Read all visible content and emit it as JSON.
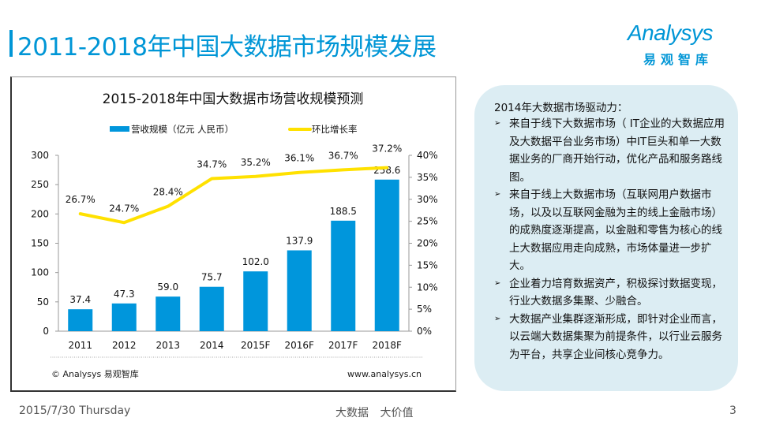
{
  "header": {
    "title": "2011-2018年中国大数据市场规模发展",
    "logo_word": "Analysys",
    "logo_cn": "易观智库"
  },
  "chart_data": {
    "type": "bar+line",
    "title": "2015-2018年中国大数据市场营收规模预测",
    "categories": [
      "2011",
      "2012",
      "2013",
      "2014",
      "2015F",
      "2016F",
      "2017F",
      "2018F"
    ],
    "series": [
      {
        "name": "营收规模（亿元 人民币）",
        "type": "bar",
        "axis": "left",
        "color": "#0096dc",
        "values": [
          37.4,
          47.3,
          59.0,
          75.7,
          102.0,
          137.9,
          188.5,
          258.6
        ],
        "labels": [
          "37.4",
          "47.3",
          "59.0",
          "75.7",
          "102.0",
          "137.9",
          "188.5",
          "258.6"
        ]
      },
      {
        "name": "环比增长率",
        "type": "line",
        "axis": "right",
        "color": "#ffe100",
        "values": [
          26.7,
          24.7,
          28.4,
          34.7,
          35.2,
          36.1,
          36.7,
          37.2
        ],
        "labels": [
          "26.7%",
          "24.7%",
          "28.4%",
          "34.7%",
          "35.2%",
          "36.1%",
          "36.7%",
          "37.2%"
        ]
      }
    ],
    "left_axis": {
      "range": [
        0,
        300
      ],
      "ticks": [
        "0",
        "50",
        "100",
        "150",
        "200",
        "250",
        "300"
      ]
    },
    "right_axis": {
      "range": [
        0,
        40
      ],
      "ticks": [
        "0%",
        "5%",
        "10%",
        "15%",
        "20%",
        "25%",
        "30%",
        "35%",
        "40%"
      ]
    },
    "legend": "top",
    "grid": false,
    "watermark": "易观智库",
    "source_left": "© Analysys 易观智库",
    "source_right": "www.analysys.cn"
  },
  "panel": {
    "heading": "2014年大数据市场驱动力：",
    "bullets": [
      "来自于线下大数据市场（ IT企业的大数据应用及大数据平台业务市场）中IT巨头和单一大数据业务的厂商开始行动，优化产品和服务路线图。",
      "来自于线上大数据市场（互联网用户数据市场，以及以互联网金融为主的线上金融市场）的成熟度逐渐提高，以金融和零售为核心的线上大数据应用走向成熟，市场体量进一步扩大。",
      "企业着力培育数据资产，积极探讨数据变现，行业大数据多集聚、少融合。",
      "大数据产业集群逐渐形成，即针对企业而言，以云端大数据集聚为前提条件，以行业云服务为平台，共享企业间核心竞争力。"
    ]
  },
  "footer": {
    "date": "2015/7/30 Thursday",
    "slogan": "大数据 大价值",
    "page": "3"
  }
}
